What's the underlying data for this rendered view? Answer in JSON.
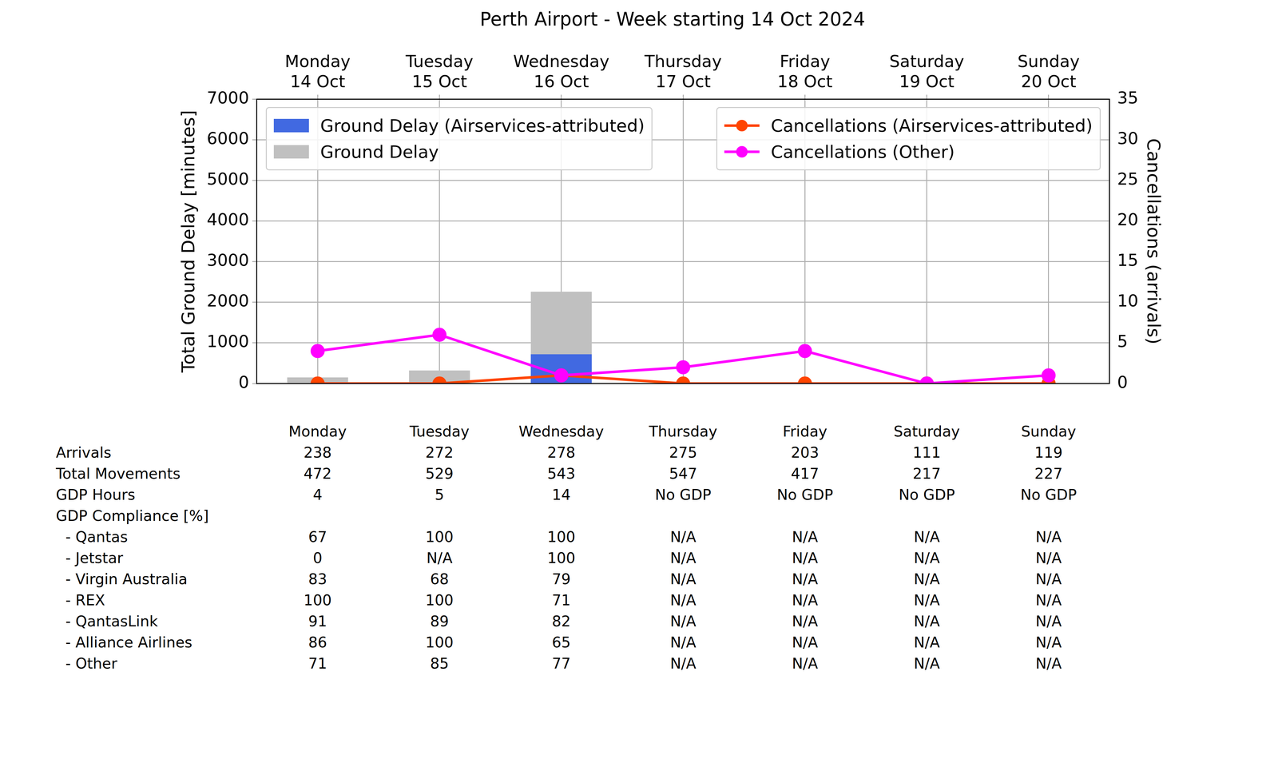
{
  "chart_data": {
    "type": "bar",
    "title": "Perth Airport - Week starting 14 Oct 2024",
    "categories": [
      "Monday 14 Oct",
      "Tuesday 15 Oct",
      "Wednesday 16 Oct",
      "Thursday 17 Oct",
      "Friday 18 Oct",
      "Saturday 19 Oct",
      "Sunday 20 Oct"
    ],
    "ylabel": "Total Ground Delay [minutes]",
    "y2label": "Cancellations (arrivals)",
    "ylim": [
      0,
      7000
    ],
    "yticks": [
      0,
      1000,
      2000,
      3000,
      4000,
      5000,
      6000,
      7000
    ],
    "y2lim": [
      0,
      35
    ],
    "y2ticks": [
      0,
      5,
      10,
      15,
      20,
      25,
      30,
      35
    ],
    "grid": true,
    "legend": "upper left",
    "series": [
      {
        "name": "Ground Delay (Airservices-attributed)",
        "type": "bar",
        "color": "#4169e1",
        "values": [
          0,
          0,
          720,
          0,
          0,
          0,
          0
        ]
      },
      {
        "name": "Ground Delay",
        "type": "bar",
        "color": "#c0c0c0",
        "values": [
          150,
          320,
          2260,
          0,
          0,
          0,
          0
        ]
      },
      {
        "name": "Cancellations (Airservices-attributed)",
        "type": "line",
        "axis": "y2",
        "color": "#ff4500",
        "marker": "circle",
        "values": [
          0,
          0,
          1,
          0,
          0,
          0,
          0
        ]
      },
      {
        "name": "Cancellations (Other)",
        "type": "line",
        "axis": "y2",
        "color": "#ff00ff",
        "marker": "circle",
        "values": [
          4,
          6,
          1,
          2,
          4,
          0,
          1
        ]
      }
    ]
  },
  "table": {
    "columns": [
      "Monday",
      "Tuesday",
      "Wednesday",
      "Thursday",
      "Friday",
      "Saturday",
      "Sunday"
    ],
    "rows": [
      {
        "label": "Arrivals",
        "values": [
          238,
          272,
          278,
          275,
          203,
          111,
          119
        ]
      },
      {
        "label": "Total Movements",
        "values": [
          472,
          529,
          543,
          547,
          417,
          217,
          227
        ]
      },
      {
        "label": "GDP Hours",
        "values": [
          4,
          5,
          14,
          "No GDP",
          "No GDP",
          "No GDP",
          "No GDP"
        ]
      },
      {
        "label": "GDP Compliance [%]",
        "values": [],
        "rows": [
          {
            "label": "- Qantas",
            "values": [
              67,
              100,
              100,
              "N/A",
              "N/A",
              "N/A",
              "N/A"
            ]
          },
          {
            "label": "- Jetstar",
            "values": [
              0,
              "N/A",
              100,
              "N/A",
              "N/A",
              "N/A",
              "N/A"
            ]
          },
          {
            "label": "- Virgin Australia",
            "values": [
              83,
              68,
              79,
              "N/A",
              "N/A",
              "N/A",
              "N/A"
            ]
          },
          {
            "label": "- REX",
            "values": [
              100,
              100,
              71,
              "N/A",
              "N/A",
              "N/A",
              "N/A"
            ]
          },
          {
            "label": "- QantasLink",
            "values": [
              91,
              89,
              82,
              "N/A",
              "N/A",
              "N/A",
              "N/A"
            ]
          },
          {
            "label": "- Alliance Airlines",
            "values": [
              86,
              100,
              65,
              "N/A",
              "N/A",
              "N/A",
              "N/A"
            ]
          },
          {
            "label": "- Other",
            "values": [
              71,
              85,
              77,
              "N/A",
              "N/A",
              "N/A",
              "N/A"
            ]
          }
        ]
      }
    ]
  }
}
